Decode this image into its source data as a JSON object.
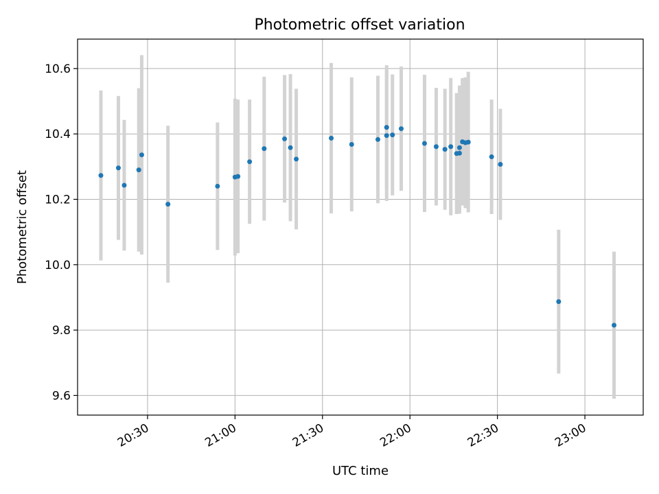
{
  "chart_data": {
    "type": "scatter",
    "title": "Photometric offset variation",
    "xlabel": "UTC time",
    "ylabel": "Photometric offset",
    "x_ticks": [
      "20:30",
      "21:00",
      "21:30",
      "22:00",
      "22:30",
      "23:00"
    ],
    "y_ticks": [
      "9.6",
      "9.8",
      "10.0",
      "10.2",
      "10.4",
      "10.6"
    ],
    "grid": true,
    "xlim": [
      "20:06",
      "23:20"
    ],
    "ylim": [
      9.54,
      10.69
    ],
    "colors": {
      "point": "#1f77b4",
      "errorbar": "#d3d3d3",
      "grid": "#b0b0b0"
    },
    "series": [
      {
        "points": [
          {
            "t": "20:14",
            "y": 10.273,
            "err": 0.26
          },
          {
            "t": "20:20",
            "y": 10.296,
            "err": 0.22
          },
          {
            "t": "20:22",
            "y": 10.243,
            "err": 0.2
          },
          {
            "t": "20:27",
            "y": 10.29,
            "err": 0.25
          },
          {
            "t": "20:28",
            "y": 10.336,
            "err": 0.305
          },
          {
            "t": "20:37",
            "y": 10.185,
            "err": 0.24
          },
          {
            "t": "20:54",
            "y": 10.24,
            "err": 0.195
          },
          {
            "t": "21:00",
            "y": 10.268,
            "err": 0.24
          },
          {
            "t": "21:01",
            "y": 10.27,
            "err": 0.235
          },
          {
            "t": "21:05",
            "y": 10.315,
            "err": 0.19
          },
          {
            "t": "21:10",
            "y": 10.355,
            "err": 0.22
          },
          {
            "t": "21:17",
            "y": 10.385,
            "err": 0.195
          },
          {
            "t": "21:19",
            "y": 10.358,
            "err": 0.225
          },
          {
            "t": "21:21",
            "y": 10.323,
            "err": 0.215
          },
          {
            "t": "21:33",
            "y": 10.387,
            "err": 0.23
          },
          {
            "t": "21:40",
            "y": 10.368,
            "err": 0.205
          },
          {
            "t": "21:49",
            "y": 10.383,
            "err": 0.195
          },
          {
            "t": "21:52",
            "y": 10.42,
            "err": 0.19
          },
          {
            "t": "21:52",
            "y": 10.395,
            "err": 0.2
          },
          {
            "t": "21:54",
            "y": 10.397,
            "err": 0.185
          },
          {
            "t": "21:57",
            "y": 10.416,
            "err": 0.19
          },
          {
            "t": "22:05",
            "y": 10.371,
            "err": 0.21
          },
          {
            "t": "22:09",
            "y": 10.361,
            "err": 0.18
          },
          {
            "t": "22:12",
            "y": 10.353,
            "err": 0.185
          },
          {
            "t": "22:14",
            "y": 10.361,
            "err": 0.21
          },
          {
            "t": "22:16",
            "y": 10.34,
            "err": 0.185
          },
          {
            "t": "22:17",
            "y": 10.358,
            "err": 0.19
          },
          {
            "t": "22:17",
            "y": 10.341,
            "err": 0.185
          },
          {
            "t": "22:18",
            "y": 10.376,
            "err": 0.195
          },
          {
            "t": "22:19",
            "y": 10.373,
            "err": 0.2
          },
          {
            "t": "22:20",
            "y": 10.375,
            "err": 0.215
          },
          {
            "t": "22:28",
            "y": 10.33,
            "err": 0.175
          },
          {
            "t": "22:31",
            "y": 10.307,
            "err": 0.17
          },
          {
            "t": "22:51",
            "y": 9.887,
            "err": 0.22
          },
          {
            "t": "23:10",
            "y": 9.815,
            "err": 0.225
          }
        ]
      }
    ]
  }
}
